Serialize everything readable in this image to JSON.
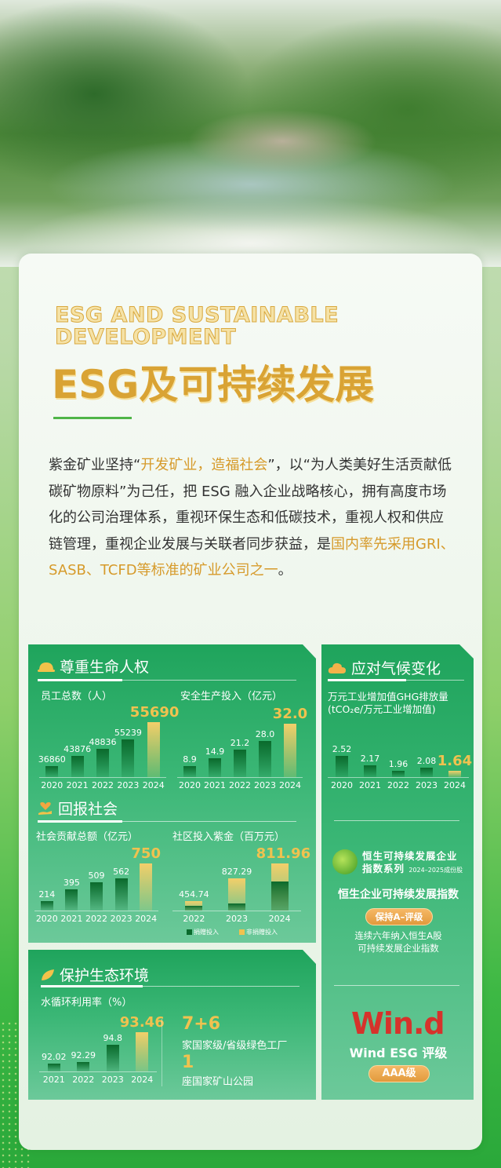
{
  "header": {
    "title_en": "ESG AND SUSTAINABLE DEVELOPMENT",
    "title_en_line1": "ESG AND SUSTAINABLE",
    "title_en_line2": "DEVELOPMENT",
    "title_zh": "ESG及可持续发展"
  },
  "intro": {
    "p1": "紫金矿业坚持“",
    "h1": "开发矿业，造福社会",
    "p2": "”，以“为人类美好生活贡献低碳矿物原料”为己任，把 ESG 融入企业战略核心，拥有高度市场化的公司治理体系，重视环保生态和低碳技术，重视人权和供应链管理，重视企业发展与关联者同步获益，是",
    "h2": "国内率先采用GRI、SASB、TCFD等标准的矿业公司之一",
    "p3": "。"
  },
  "sections": {
    "human_rights": {
      "title": "尊重生命人权",
      "icon": "hard-hat-icon"
    },
    "society": {
      "title": "回报社会",
      "icon": "heart-hand-icon"
    },
    "climate": {
      "title": "应对气候变化",
      "icon": "cloud-icon"
    },
    "ecology": {
      "title": "保护生态环境",
      "icon": "leaf-icon"
    }
  },
  "ecology_stats": {
    "factories_value": "7+6",
    "factories_label": "家国家级/省级绿色工厂",
    "parks_value": "1",
    "parks_label": "座国家矿山公园"
  },
  "hang_seng": {
    "logo_line1": "恒生可持续发展企业",
    "logo_line2": "指数系列",
    "logo_period": "2024–2025成份股",
    "title": "恒生企业可持续发展指数",
    "badge": "保持A–评级",
    "desc_line1": "连续六年纳入恒生A股",
    "desc_line2": "可持续发展企业指数"
  },
  "wind": {
    "logo": "Win.d",
    "title": "Wind ESG 评级",
    "badge": "AAA级"
  },
  "colors": {
    "accent_gold": "#f0c24f",
    "bar_green": "#0a6a2c",
    "panel_green": "#1fa45c",
    "wind_red": "#d6322b"
  },
  "chart_data": [
    {
      "type": "bar",
      "title": "员工总数（人）",
      "categories": [
        "2020",
        "2021",
        "2022",
        "2023",
        "2024"
      ],
      "values": [
        36860,
        43876,
        48836,
        55239,
        55690
      ],
      "labels": [
        "36860",
        "43876",
        "48836",
        "55239",
        "55690"
      ],
      "highlight_last": true
    },
    {
      "type": "bar",
      "title": "安全生产投入（亿元）",
      "categories": [
        "2020",
        "2021",
        "2022",
        "2023",
        "2024"
      ],
      "values": [
        8.9,
        14.9,
        21.2,
        28.0,
        32.0
      ],
      "labels": [
        "8.9",
        "14.9",
        "21.2",
        "28.0",
        "32.0"
      ],
      "highlight_last": true
    },
    {
      "type": "bar",
      "title": "社会贡献总额（亿元）",
      "categories": [
        "2020",
        "2021",
        "2022",
        "2023",
        "2024"
      ],
      "values": [
        214,
        395,
        509,
        562,
        750
      ],
      "labels": [
        "214",
        "395",
        "509",
        "562",
        "750"
      ],
      "highlight_last": true
    },
    {
      "type": "bar",
      "stacked": true,
      "title": "社区投入紫金（百万元）",
      "categories": [
        "2022",
        "2023",
        "2024"
      ],
      "values": [
        454.74,
        827.29,
        811.96
      ],
      "labels": [
        "454.74",
        "827.29",
        "811.96"
      ],
      "donation_share": [
        0.5,
        0.22,
        0.62
      ],
      "legend": [
        "捐赠投入",
        "非捐赠投入"
      ],
      "legend_position": "bottom",
      "highlight_last": true
    },
    {
      "type": "bar",
      "title": "万元工业增加值GHG排放量",
      "title2": "(tCO₂e/万元工业增加值)",
      "categories": [
        "2020",
        "2021",
        "2022",
        "2023",
        "2024"
      ],
      "values": [
        2.52,
        2.17,
        1.96,
        2.08,
        1.64
      ],
      "labels": [
        "2.52",
        "2.17",
        "1.96",
        "2.08",
        "1.64"
      ],
      "highlight_last": true
    },
    {
      "type": "bar",
      "title": "水循环利用率（%）",
      "categories": [
        "2021",
        "2022",
        "2023",
        "2024"
      ],
      "values": [
        92.02,
        92.29,
        94.8,
        93.46
      ],
      "labels": [
        "92.02",
        "92.29",
        "94.8",
        "93.46"
      ],
      "highlight_last": true
    }
  ]
}
